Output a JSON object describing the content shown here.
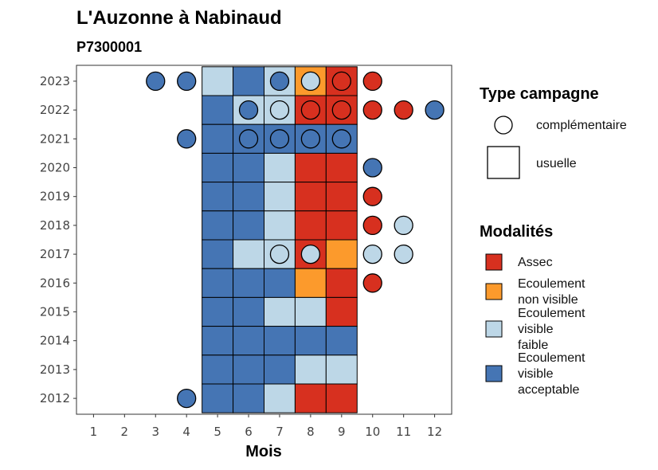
{
  "chart_data": {
    "type": "heatmap",
    "title": "L'Auzonne à Nabinaud",
    "subtitle": "P7300001",
    "xlabel": "Mois",
    "ylabel": "",
    "x_ticks": [
      "1",
      "2",
      "3",
      "4",
      "5",
      "6",
      "7",
      "8",
      "9",
      "10",
      "11",
      "12"
    ],
    "y_ticks": [
      "2012",
      "2013",
      "2014",
      "2015",
      "2016",
      "2017",
      "2018",
      "2019",
      "2020",
      "2021",
      "2022",
      "2023"
    ],
    "colors": {
      "Assec": "#d7301f",
      "Ecoulement non visible": "#fc9a2c",
      "Ecoulement visible faible": "#bdd7e7",
      "Ecoulement visible acceptable": "#4575b4"
    },
    "legend_shape": {
      "title": "Type campagne",
      "items": [
        {
          "shape": "circle",
          "label": "complémentaire"
        },
        {
          "shape": "square",
          "label": "usuelle"
        }
      ]
    },
    "legend_fill": {
      "title": "Modalités",
      "items": [
        {
          "key": "Assec",
          "lines": [
            "Assec"
          ]
        },
        {
          "key": "Ecoulement non visible",
          "lines": [
            "Ecoulement",
            "non visible"
          ]
        },
        {
          "key": "Ecoulement visible faible",
          "lines": [
            "Ecoulement",
            "visible",
            "faible"
          ]
        },
        {
          "key": "Ecoulement visible acceptable",
          "lines": [
            "Ecoulement",
            "visible",
            "acceptable"
          ]
        }
      ]
    },
    "usuelle": [
      {
        "year": 2023,
        "month": 5,
        "modalite": "Ecoulement visible faible"
      },
      {
        "year": 2023,
        "month": 6,
        "modalite": "Ecoulement visible acceptable"
      },
      {
        "year": 2023,
        "month": 7,
        "modalite": "Ecoulement visible faible"
      },
      {
        "year": 2023,
        "month": 8,
        "modalite": "Ecoulement non visible"
      },
      {
        "year": 2023,
        "month": 9,
        "modalite": "Assec"
      },
      {
        "year": 2022,
        "month": 5,
        "modalite": "Ecoulement visible acceptable"
      },
      {
        "year": 2022,
        "month": 6,
        "modalite": "Ecoulement visible faible"
      },
      {
        "year": 2022,
        "month": 7,
        "modalite": "Ecoulement visible faible"
      },
      {
        "year": 2022,
        "month": 8,
        "modalite": "Assec"
      },
      {
        "year": 2022,
        "month": 9,
        "modalite": "Assec"
      },
      {
        "year": 2021,
        "month": 5,
        "modalite": "Ecoulement visible acceptable"
      },
      {
        "year": 2021,
        "month": 6,
        "modalite": "Ecoulement visible acceptable"
      },
      {
        "year": 2021,
        "month": 7,
        "modalite": "Ecoulement visible acceptable"
      },
      {
        "year": 2021,
        "month": 8,
        "modalite": "Ecoulement visible acceptable"
      },
      {
        "year": 2021,
        "month": 9,
        "modalite": "Ecoulement visible acceptable"
      },
      {
        "year": 2020,
        "month": 5,
        "modalite": "Ecoulement visible acceptable"
      },
      {
        "year": 2020,
        "month": 6,
        "modalite": "Ecoulement visible acceptable"
      },
      {
        "year": 2020,
        "month": 7,
        "modalite": "Ecoulement visible faible"
      },
      {
        "year": 2020,
        "month": 8,
        "modalite": "Assec"
      },
      {
        "year": 2020,
        "month": 9,
        "modalite": "Assec"
      },
      {
        "year": 2019,
        "month": 5,
        "modalite": "Ecoulement visible acceptable"
      },
      {
        "year": 2019,
        "month": 6,
        "modalite": "Ecoulement visible acceptable"
      },
      {
        "year": 2019,
        "month": 7,
        "modalite": "Ecoulement visible faible"
      },
      {
        "year": 2019,
        "month": 8,
        "modalite": "Assec"
      },
      {
        "year": 2019,
        "month": 9,
        "modalite": "Assec"
      },
      {
        "year": 2018,
        "month": 5,
        "modalite": "Ecoulement visible acceptable"
      },
      {
        "year": 2018,
        "month": 6,
        "modalite": "Ecoulement visible acceptable"
      },
      {
        "year": 2018,
        "month": 7,
        "modalite": "Ecoulement visible faible"
      },
      {
        "year": 2018,
        "month": 8,
        "modalite": "Assec"
      },
      {
        "year": 2018,
        "month": 9,
        "modalite": "Assec"
      },
      {
        "year": 2017,
        "month": 5,
        "modalite": "Ecoulement visible acceptable"
      },
      {
        "year": 2017,
        "month": 6,
        "modalite": "Ecoulement visible faible"
      },
      {
        "year": 2017,
        "month": 7,
        "modalite": "Ecoulement visible faible"
      },
      {
        "year": 2017,
        "month": 8,
        "modalite": "Assec"
      },
      {
        "year": 2017,
        "month": 9,
        "modalite": "Ecoulement non visible"
      },
      {
        "year": 2016,
        "month": 5,
        "modalite": "Ecoulement visible acceptable"
      },
      {
        "year": 2016,
        "month": 6,
        "modalite": "Ecoulement visible acceptable"
      },
      {
        "year": 2016,
        "month": 7,
        "modalite": "Ecoulement visible acceptable"
      },
      {
        "year": 2016,
        "month": 8,
        "modalite": "Ecoulement non visible"
      },
      {
        "year": 2016,
        "month": 9,
        "modalite": "Assec"
      },
      {
        "year": 2015,
        "month": 5,
        "modalite": "Ecoulement visible acceptable"
      },
      {
        "year": 2015,
        "month": 6,
        "modalite": "Ecoulement visible acceptable"
      },
      {
        "year": 2015,
        "month": 7,
        "modalite": "Ecoulement visible faible"
      },
      {
        "year": 2015,
        "month": 8,
        "modalite": "Ecoulement visible faible"
      },
      {
        "year": 2015,
        "month": 9,
        "modalite": "Assec"
      },
      {
        "year": 2014,
        "month": 5,
        "modalite": "Ecoulement visible acceptable"
      },
      {
        "year": 2014,
        "month": 6,
        "modalite": "Ecoulement visible acceptable"
      },
      {
        "year": 2014,
        "month": 7,
        "modalite": "Ecoulement visible acceptable"
      },
      {
        "year": 2014,
        "month": 8,
        "modalite": "Ecoulement visible acceptable"
      },
      {
        "year": 2014,
        "month": 9,
        "modalite": "Ecoulement visible acceptable"
      },
      {
        "year": 2013,
        "month": 5,
        "modalite": "Ecoulement visible acceptable"
      },
      {
        "year": 2013,
        "month": 6,
        "modalite": "Ecoulement visible acceptable"
      },
      {
        "year": 2013,
        "month": 7,
        "modalite": "Ecoulement visible acceptable"
      },
      {
        "year": 2013,
        "month": 8,
        "modalite": "Ecoulement visible faible"
      },
      {
        "year": 2013,
        "month": 9,
        "modalite": "Ecoulement visible faible"
      },
      {
        "year": 2012,
        "month": 5,
        "modalite": "Ecoulement visible acceptable"
      },
      {
        "year": 2012,
        "month": 6,
        "modalite": "Ecoulement visible acceptable"
      },
      {
        "year": 2012,
        "month": 7,
        "modalite": "Ecoulement visible faible"
      },
      {
        "year": 2012,
        "month": 8,
        "modalite": "Assec"
      },
      {
        "year": 2012,
        "month": 9,
        "modalite": "Assec"
      }
    ],
    "complementaire": [
      {
        "year": 2023,
        "month": 3,
        "modalite": "Ecoulement visible acceptable"
      },
      {
        "year": 2023,
        "month": 4,
        "modalite": "Ecoulement visible acceptable"
      },
      {
        "year": 2023,
        "month": 7,
        "modalite": "Ecoulement visible acceptable"
      },
      {
        "year": 2023,
        "month": 8,
        "modalite": "Ecoulement visible faible"
      },
      {
        "year": 2023,
        "month": 9,
        "modalite": "Assec"
      },
      {
        "year": 2023,
        "month": 10,
        "modalite": "Assec"
      },
      {
        "year": 2022,
        "month": 6,
        "modalite": "Ecoulement visible acceptable"
      },
      {
        "year": 2022,
        "month": 7,
        "modalite": "Ecoulement visible faible"
      },
      {
        "year": 2022,
        "month": 8,
        "modalite": "Assec"
      },
      {
        "year": 2022,
        "month": 9,
        "modalite": "Assec"
      },
      {
        "year": 2022,
        "month": 10,
        "modalite": "Assec"
      },
      {
        "year": 2022,
        "month": 11,
        "modalite": "Assec"
      },
      {
        "year": 2022,
        "month": 12,
        "modalite": "Ecoulement visible acceptable"
      },
      {
        "year": 2021,
        "month": 4,
        "modalite": "Ecoulement visible acceptable"
      },
      {
        "year": 2021,
        "month": 6,
        "modalite": "Ecoulement visible acceptable"
      },
      {
        "year": 2021,
        "month": 7,
        "modalite": "Ecoulement visible acceptable"
      },
      {
        "year": 2021,
        "month": 8,
        "modalite": "Ecoulement visible acceptable"
      },
      {
        "year": 2021,
        "month": 9,
        "modalite": "Ecoulement visible acceptable"
      },
      {
        "year": 2020,
        "month": 10,
        "modalite": "Ecoulement visible acceptable"
      },
      {
        "year": 2019,
        "month": 10,
        "modalite": "Assec"
      },
      {
        "year": 2018,
        "month": 10,
        "modalite": "Assec"
      },
      {
        "year": 2018,
        "month": 11,
        "modalite": "Ecoulement visible faible"
      },
      {
        "year": 2017,
        "month": 7,
        "modalite": "Ecoulement visible faible"
      },
      {
        "year": 2017,
        "month": 8,
        "modalite": "Ecoulement visible faible"
      },
      {
        "year": 2017,
        "month": 10,
        "modalite": "Ecoulement visible faible"
      },
      {
        "year": 2017,
        "month": 11,
        "modalite": "Ecoulement visible faible"
      },
      {
        "year": 2016,
        "month": 10,
        "modalite": "Assec"
      },
      {
        "year": 2012,
        "month": 4,
        "modalite": "Ecoulement visible acceptable"
      }
    ]
  }
}
